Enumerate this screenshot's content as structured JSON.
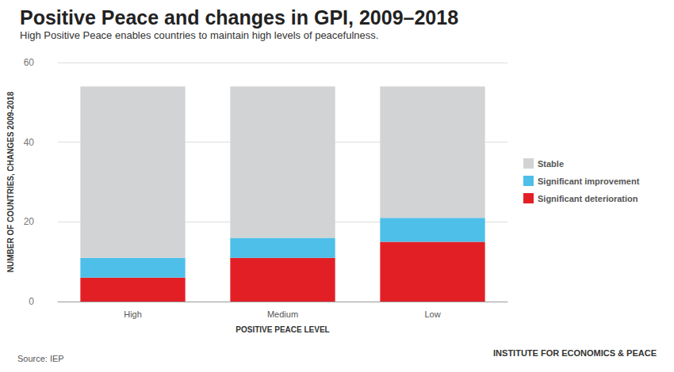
{
  "chart_data": {
    "type": "bar",
    "title": "Positive Peace and changes in GPI, 2009–2018",
    "subtitle": "High Positive Peace enables countries to maintain high levels of peacefulness.",
    "x_label": "POSITIVE PEACE LEVEL",
    "y_label": "NUMBER OF COUNTRIES, CHANGES 2009-2018",
    "source": "Source: IEP",
    "credit": "INSTITUTE FOR ECONOMICS & PEACE",
    "categories": [
      "High",
      "Medium",
      "Low"
    ],
    "series": [
      {
        "name": "Significant deterioration",
        "color": "#e31f26",
        "values": [
          6,
          11,
          15
        ]
      },
      {
        "name": "Significant improvement",
        "color": "#4dbfe9",
        "values": [
          5,
          5,
          6
        ]
      },
      {
        "name": "Stable",
        "color": "#d1d3d4",
        "values": [
          43,
          38,
          33
        ]
      }
    ],
    "stacked": true,
    "ylim": [
      0,
      60
    ],
    "yticks": [
      0,
      20,
      40,
      60
    ],
    "grid": true,
    "legend": "right"
  }
}
